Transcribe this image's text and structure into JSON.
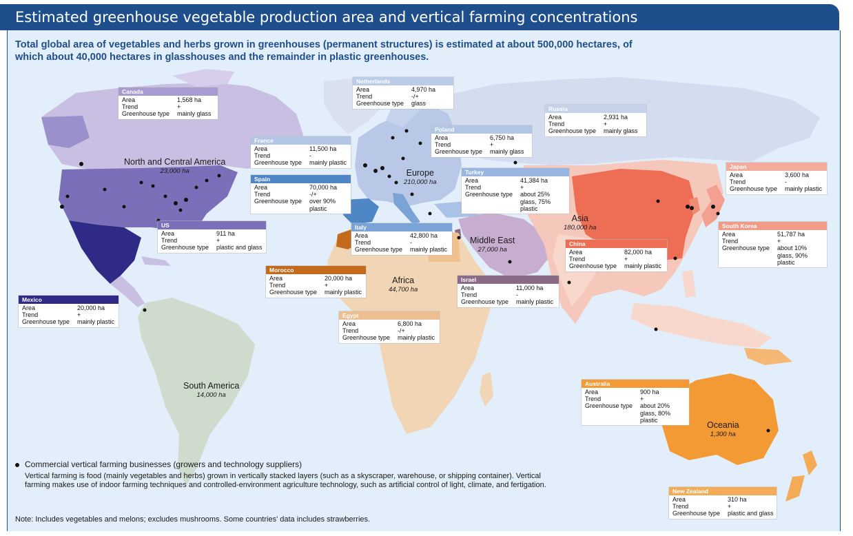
{
  "title": "Estimated greenhouse vegetable production area and vertical farming concentrations",
  "subtitle": "Total global area of vegetables and herbs grown in greenhouses (permanent structures) is estimated at about 500,000 hectares, of which about 40,000 hectares in glasshouses and the remainder in plastic greenhouses.",
  "field_labels": {
    "area": "Area",
    "trend": "Trend",
    "type": "Greenhouse type"
  },
  "regions": {
    "north_central_america": {
      "name": "North and Central America",
      "area": "23,000 ha"
    },
    "europe": {
      "name": "Europe",
      "area": "210,000 ha"
    },
    "asia": {
      "name": "Asia",
      "area": "180,000 ha"
    },
    "middle_east": {
      "name": "Middle East",
      "area": "27,000 ha"
    },
    "africa": {
      "name": "Africa",
      "area": "44,700 ha"
    },
    "south_america": {
      "name": "South America",
      "area": "14,000 ha"
    },
    "oceania": {
      "name": "Oceania",
      "area": "1,300 ha"
    }
  },
  "countries": {
    "canada": {
      "name": "Canada",
      "area": "1,568 ha",
      "trend": "+",
      "type": "mainly glass"
    },
    "netherlands": {
      "name": "Netherlands",
      "area": "4,970 ha",
      "trend": "-/+",
      "type": "glass"
    },
    "russia": {
      "name": "Russia",
      "area": "2,931 ha",
      "trend": "+",
      "type": "mainly glass"
    },
    "poland": {
      "name": "Poland",
      "area": "6,750 ha",
      "trend": "+",
      "type": "mainly glass"
    },
    "france": {
      "name": "France",
      "area": "11,500 ha",
      "trend": "-",
      "type": "mainly plastic"
    },
    "spain": {
      "name": "Spain",
      "area": "70,000 ha",
      "trend": "-/+",
      "type": "over 90% plastic"
    },
    "turkey": {
      "name": "Turkey",
      "area": "41,384 ha",
      "trend": "+",
      "type": "about 25% glass, 75% plastic"
    },
    "japan": {
      "name": "Japan",
      "area": "3,600 ha",
      "trend": "-",
      "type": "mainly plastic"
    },
    "south_korea": {
      "name": "South Korea",
      "area": "51,787 ha",
      "trend": "+",
      "type": "about 10% glass, 90% plastic"
    },
    "us": {
      "name": "US",
      "area": "911 ha",
      "trend": "+",
      "type": "plastic and glass"
    },
    "italy": {
      "name": "Italy",
      "area": "42,800 ha",
      "trend": "-",
      "type": "mainly plastic"
    },
    "china": {
      "name": "China",
      "area": "82,000 ha",
      "trend": "+",
      "type": "mainly plastic"
    },
    "morocco": {
      "name": "Morocco",
      "area": "20,000 ha",
      "trend": "+",
      "type": "mainly plastic"
    },
    "israel": {
      "name": "Israel",
      "area": "11,000 ha",
      "trend": "-",
      "type": "mainly plastic"
    },
    "mexico": {
      "name": "Mexico",
      "area": "20,000 ha",
      "trend": "+",
      "type": "mainly plastic"
    },
    "egypt": {
      "name": "Egypt",
      "area": "6,800 ha",
      "trend": "-/+",
      "type": "mainly plastic"
    },
    "australia": {
      "name": "Australia",
      "area": "900 ha",
      "trend": "+",
      "type": "about 20% glass, 80% plastic"
    },
    "new_zealand": {
      "name": "New Zealand",
      "area": "310 ha",
      "trend": "+",
      "type": "plastic and glass"
    }
  },
  "legend": {
    "title": "Commercial vertical farming businesses (growers and technology suppliers)",
    "description": "Vertical farming is food (mainly vegetables and herbs) grown in vertically stacked layers (such as a skyscraper, warehouse, or shipping container). Vertical farming makes use of indoor farming techniques and controlled-environment agriculture technology, such as artificial control of light, climate, and fertigation."
  },
  "note": "Note: Includes vegetables and melons; excludes mushrooms. Some countries' data includes strawberries.",
  "colors": {
    "ocean": "#e2eef9",
    "title_bar": "#1f4e8c",
    "north_america": "#c9bfe2",
    "us": "#7a6fb8",
    "mexico": "#2e2a86",
    "europe": "#b8c8e6",
    "spain": "#4f86c6",
    "russia": "#d3ddef",
    "asia": "#f6c8bb",
    "china": "#ee6e55",
    "middle_east": "#c7aed0",
    "africa": "#f2d5b5",
    "morocco": "#c46a1c",
    "south_america": "#cfdccd",
    "oceania": "#f39a35"
  }
}
